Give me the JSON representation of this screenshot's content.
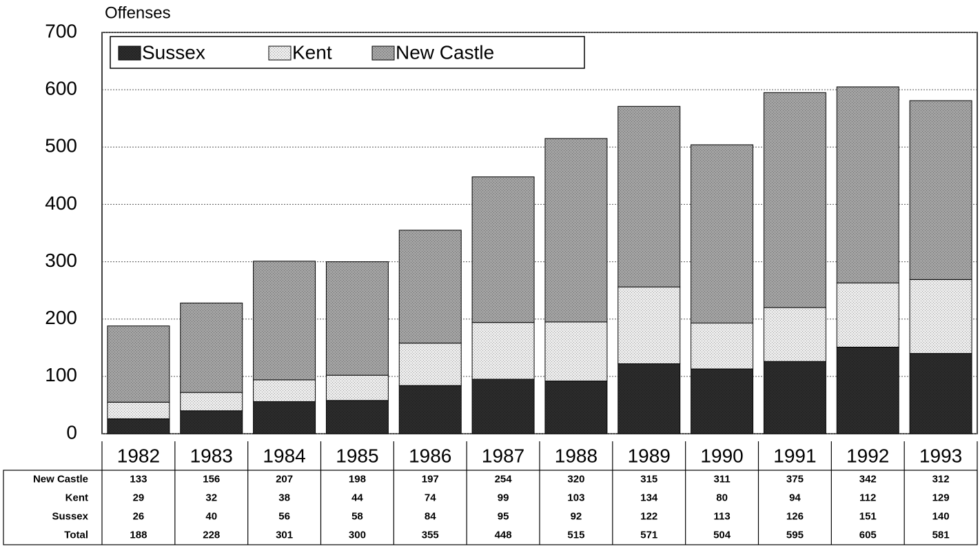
{
  "chart_data": {
    "type": "stacked_bar",
    "title": "Offenses",
    "categories": [
      "1982",
      "1983",
      "1984",
      "1985",
      "1986",
      "1987",
      "1988",
      "1989",
      "1990",
      "1991",
      "1992",
      "1993"
    ],
    "series": [
      {
        "name": "Sussex",
        "color": "#2b2b2b",
        "values": [
          26,
          40,
          56,
          58,
          84,
          95,
          92,
          122,
          113,
          126,
          151,
          140
        ]
      },
      {
        "name": "Kent",
        "color": "#ececec",
        "values": [
          29,
          32,
          38,
          44,
          74,
          99,
          103,
          134,
          80,
          94,
          112,
          129
        ]
      },
      {
        "name": "New Castle",
        "color": "#a3a3a3",
        "values": [
          133,
          156,
          207,
          198,
          197,
          254,
          320,
          315,
          311,
          375,
          342,
          312
        ]
      }
    ],
    "total_label": "Total",
    "totals": [
      188,
      228,
      301,
      300,
      355,
      448,
      515,
      571,
      504,
      595,
      605,
      581
    ],
    "ylim": [
      0,
      700
    ],
    "yticks": [
      0,
      100,
      200,
      300,
      400,
      500,
      600,
      700
    ],
    "grid": true,
    "legend": "top-left"
  }
}
